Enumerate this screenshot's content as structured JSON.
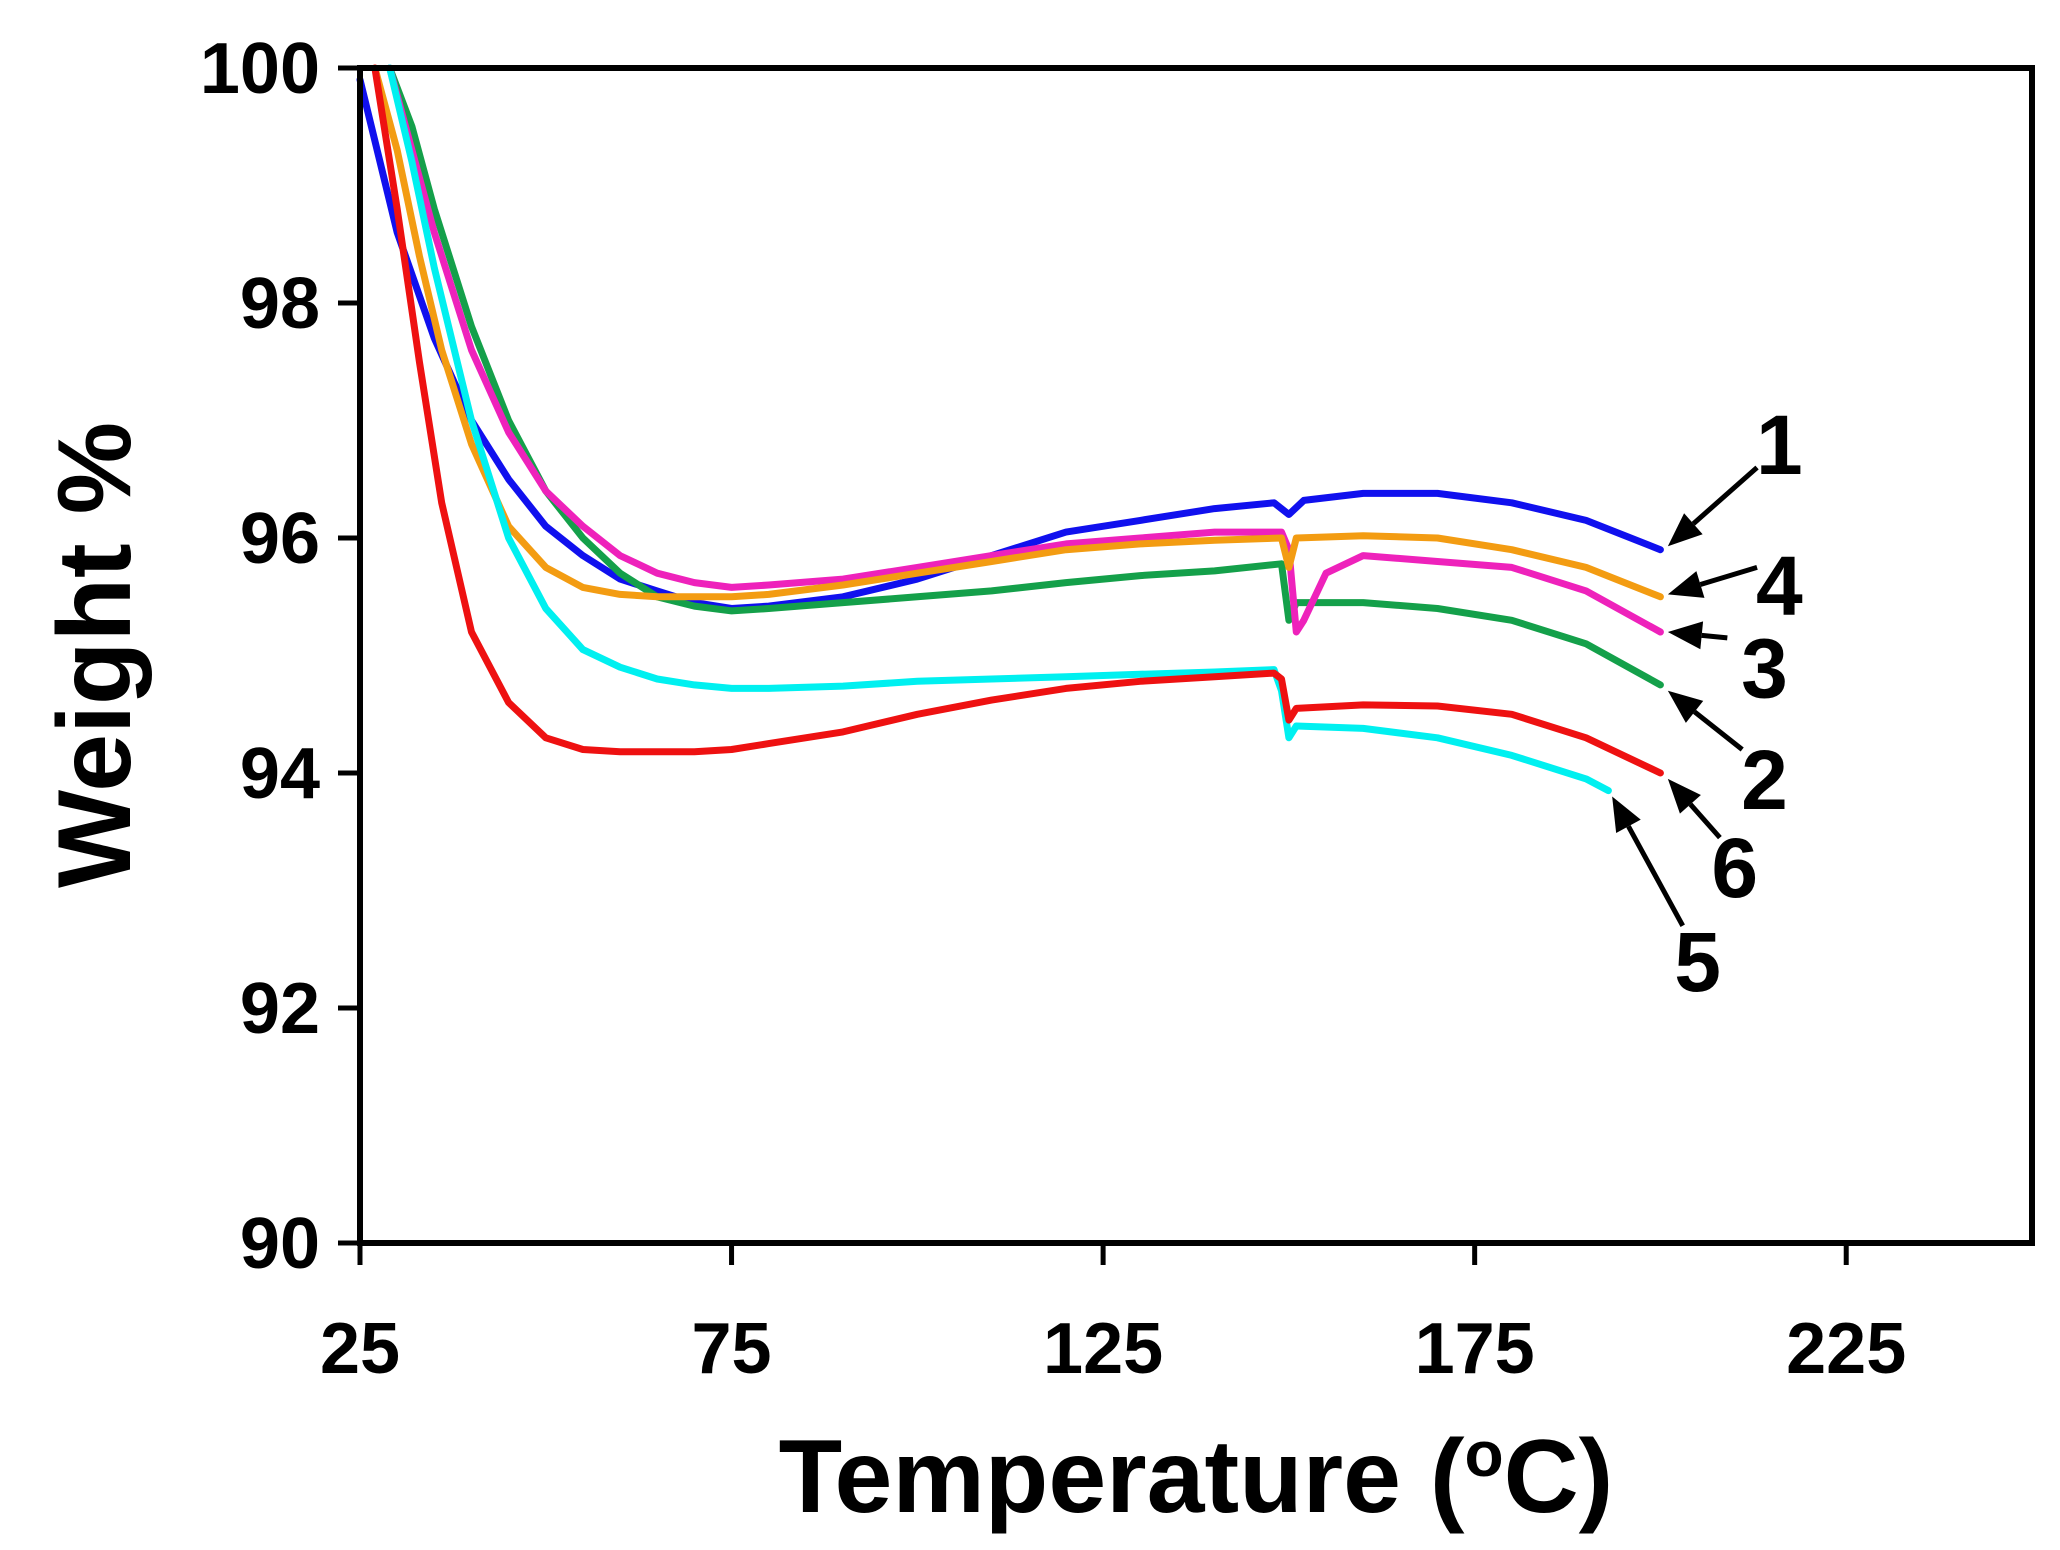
{
  "chart_data": {
    "type": "line",
    "title": "",
    "xlabel": "Temperature (",
    "xlabel_sup": "o",
    "xlabel_end": "C)",
    "ylabel": "Weight %",
    "xlim": [
      25,
      250
    ],
    "ylim": [
      90,
      100
    ],
    "xticks": [
      25,
      75,
      125,
      175,
      225
    ],
    "yticks": [
      90,
      92,
      94,
      96,
      98,
      100
    ],
    "xtick_labels": [
      "25",
      "75",
      "125",
      "175",
      "225"
    ],
    "ytick_labels": [
      "90",
      "92",
      "94",
      "96",
      "98",
      "100"
    ],
    "grid": false,
    "series": [
      {
        "name": "1",
        "color": "#1010ee",
        "x": [
          25,
          30,
          35,
          40,
          45,
          50,
          55,
          60,
          65,
          70,
          75,
          80,
          90,
          100,
          110,
          120,
          130,
          140,
          148,
          150,
          152,
          160,
          170,
          180,
          190,
          200
        ],
        "y": [
          99.9,
          98.6,
          97.7,
          97.0,
          96.5,
          96.1,
          95.85,
          95.65,
          95.55,
          95.45,
          95.4,
          95.42,
          95.5,
          95.65,
          95.85,
          96.05,
          96.15,
          96.25,
          96.3,
          96.2,
          96.32,
          96.38,
          96.38,
          96.3,
          96.15,
          95.9
        ],
        "label_text": "1",
        "label_x": 216,
        "label_y": 96.8,
        "arrow_from_x": 213,
        "arrow_from_y": 96.6,
        "arrow_to_x": 201,
        "arrow_to_y": 95.93
      },
      {
        "name": "2",
        "color": "#14a04a",
        "x": [
          29,
          32,
          35,
          40,
          45,
          50,
          55,
          60,
          65,
          70,
          75,
          80,
          90,
          100,
          110,
          120,
          130,
          140,
          149,
          150,
          151,
          160,
          170,
          180,
          190,
          200
        ],
        "y": [
          100.0,
          99.5,
          98.8,
          97.8,
          97.0,
          96.4,
          96.0,
          95.7,
          95.5,
          95.42,
          95.38,
          95.4,
          95.45,
          95.5,
          95.55,
          95.62,
          95.68,
          95.72,
          95.78,
          95.3,
          95.45,
          95.45,
          95.4,
          95.3,
          95.1,
          94.75
        ],
        "label_text": "2",
        "label_x": 214,
        "label_y": 93.95,
        "arrow_from_x": 211,
        "arrow_from_y": 94.2,
        "arrow_to_x": 201,
        "arrow_to_y": 94.7
      },
      {
        "name": "3",
        "color": "#ee22bb",
        "x": [
          29,
          32,
          35,
          40,
          45,
          50,
          55,
          60,
          65,
          70,
          75,
          80,
          90,
          100,
          110,
          120,
          130,
          140,
          149,
          150,
          151,
          152,
          155,
          160,
          170,
          180,
          190,
          200
        ],
        "y": [
          100.0,
          99.3,
          98.6,
          97.6,
          96.9,
          96.4,
          96.1,
          95.85,
          95.7,
          95.62,
          95.58,
          95.6,
          95.65,
          95.75,
          95.85,
          95.95,
          96.0,
          96.05,
          96.05,
          95.9,
          95.2,
          95.3,
          95.7,
          95.85,
          95.8,
          95.75,
          95.55,
          95.2
        ],
        "label_text": "3",
        "label_x": 214,
        "label_y": 94.9,
        "arrow_from_x": 209,
        "arrow_from_y": 95.15,
        "arrow_to_x": 201,
        "arrow_to_y": 95.2
      },
      {
        "name": "4",
        "color": "#f39c12",
        "x": [
          27,
          30,
          33,
          36,
          40,
          45,
          50,
          55,
          60,
          65,
          70,
          75,
          80,
          90,
          100,
          110,
          120,
          130,
          140,
          149,
          150,
          151,
          160,
          170,
          180,
          190,
          200
        ],
        "y": [
          100.0,
          99.3,
          98.4,
          97.6,
          96.8,
          96.1,
          95.75,
          95.58,
          95.52,
          95.5,
          95.5,
          95.5,
          95.52,
          95.6,
          95.7,
          95.8,
          95.9,
          95.95,
          95.98,
          96.0,
          95.75,
          96.0,
          96.02,
          96.0,
          95.9,
          95.75,
          95.5
        ],
        "label_text": "4",
        "label_x": 216,
        "label_y": 95.6,
        "arrow_from_x": 213,
        "arrow_from_y": 95.75,
        "arrow_to_x": 201,
        "arrow_to_y": 95.52
      },
      {
        "name": "5",
        "color": "#00f0f0",
        "x": [
          29,
          32,
          35,
          40,
          45,
          50,
          55,
          60,
          65,
          70,
          75,
          80,
          90,
          100,
          110,
          120,
          130,
          140,
          148,
          149,
          150,
          151,
          160,
          170,
          180,
          190,
          193
        ],
        "y": [
          100.0,
          99.2,
          98.3,
          97.0,
          96.0,
          95.4,
          95.05,
          94.9,
          94.8,
          94.75,
          94.72,
          94.72,
          94.74,
          94.78,
          94.8,
          94.82,
          94.84,
          94.86,
          94.88,
          94.7,
          94.3,
          94.4,
          94.38,
          94.3,
          94.15,
          93.95,
          93.85
        ],
        "label_text": "5",
        "label_x": 205,
        "label_y": 92.4,
        "arrow_from_x": 203,
        "arrow_from_y": 92.7,
        "arrow_to_x": 193.5,
        "arrow_to_y": 93.8
      },
      {
        "name": "6",
        "color": "#ee1111",
        "x": [
          27,
          30,
          33,
          36,
          40,
          45,
          50,
          55,
          60,
          65,
          70,
          75,
          80,
          90,
          100,
          110,
          120,
          130,
          140,
          148,
          149,
          150,
          151,
          160,
          170,
          180,
          190,
          200
        ],
        "y": [
          100.0,
          98.8,
          97.5,
          96.3,
          95.2,
          94.6,
          94.3,
          94.2,
          94.18,
          94.18,
          94.18,
          94.2,
          94.25,
          94.35,
          94.5,
          94.62,
          94.72,
          94.78,
          94.82,
          94.85,
          94.8,
          94.45,
          94.55,
          94.58,
          94.57,
          94.5,
          94.3,
          94.0
        ],
        "label_text": "6",
        "label_x": 210,
        "label_y": 93.2,
        "arrow_from_x": 208,
        "arrow_from_y": 93.45,
        "arrow_to_x": 201,
        "arrow_to_y": 93.95
      }
    ]
  }
}
